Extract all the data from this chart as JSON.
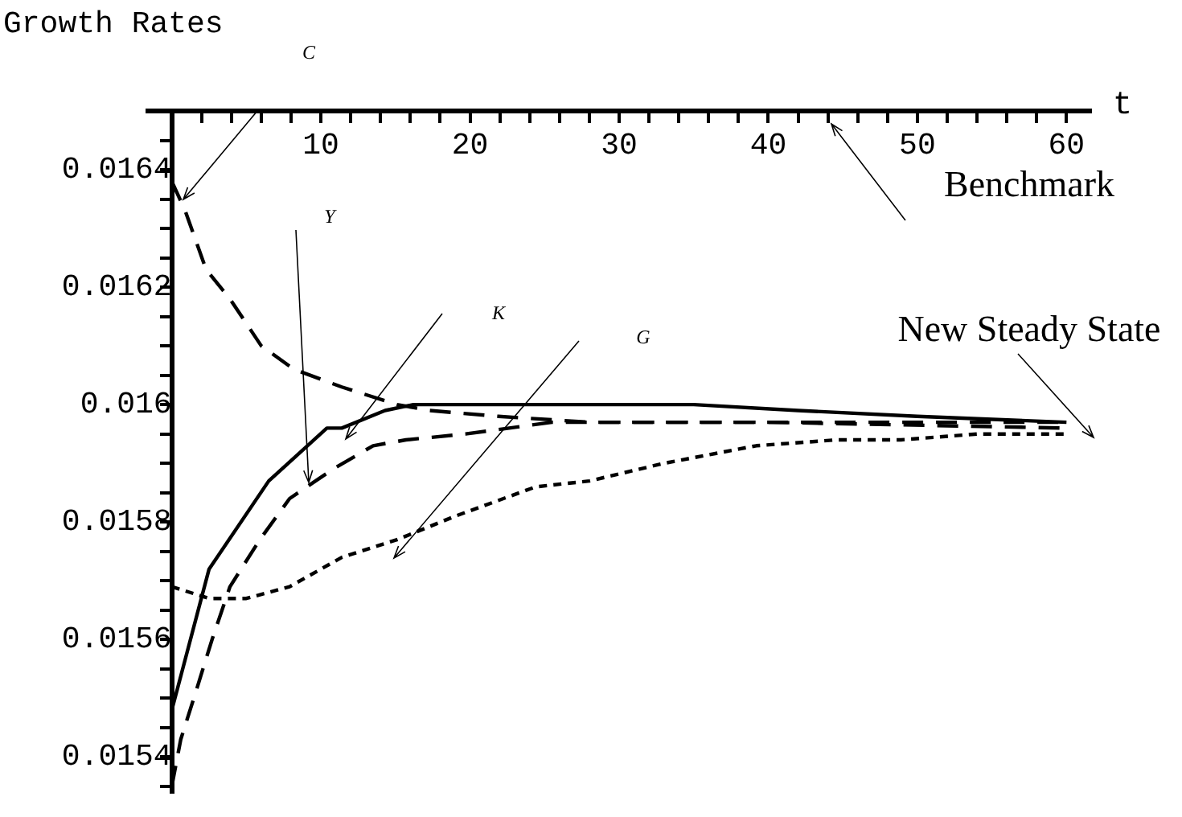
{
  "chart_data": {
    "type": "line",
    "title": "Growth Rates",
    "xlabel": "t",
    "xlim": [
      -1.6,
      61.6
    ],
    "ylim": [
      0.01534,
      0.0165
    ],
    "xticks": [
      {
        "value": 2,
        "label": null
      },
      {
        "value": 4,
        "label": null
      },
      {
        "value": 6,
        "label": null
      },
      {
        "value": 8,
        "label": null
      },
      10,
      {
        "value": 12,
        "label": null
      },
      {
        "value": 14,
        "label": null
      },
      {
        "value": 16,
        "label": null
      },
      {
        "value": 18,
        "label": null
      },
      20,
      {
        "value": 22,
        "label": null
      },
      {
        "value": 24,
        "label": null
      },
      {
        "value": 26,
        "label": null
      },
      {
        "value": 28,
        "label": null
      },
      30,
      {
        "value": 32,
        "label": null
      },
      {
        "value": 34,
        "label": null
      },
      {
        "value": 36,
        "label": null
      },
      {
        "value": 38,
        "label": null
      },
      40,
      {
        "value": 42,
        "label": null
      },
      {
        "value": 44,
        "label": null
      },
      {
        "value": 46,
        "label": null
      },
      {
        "value": 48,
        "label": null
      },
      50,
      {
        "value": 52,
        "label": null
      },
      {
        "value": 54,
        "label": null
      },
      {
        "value": 56,
        "label": null
      },
      {
        "value": 58,
        "label": null
      },
      60
    ],
    "yticks": [
      {
        "value": 0.01535,
        "label": null
      },
      0.0154,
      {
        "value": 0.01545,
        "label": null
      },
      {
        "value": 0.0155,
        "label": null
      },
      {
        "value": 0.01555,
        "label": null
      },
      0.0156,
      {
        "value": 0.01565,
        "label": null
      },
      {
        "value": 0.0157,
        "label": null
      },
      {
        "value": 0.01575,
        "label": null
      },
      0.0158,
      {
        "value": 0.01585,
        "label": null
      },
      {
        "value": 0.0159,
        "label": null
      },
      {
        "value": 0.01595,
        "label": null
      },
      0.016,
      {
        "value": 0.01605,
        "label": null
      },
      {
        "value": 0.0161,
        "label": null
      },
      {
        "value": 0.01615,
        "label": null
      },
      0.0162,
      {
        "value": 0.01625,
        "label": null
      },
      {
        "value": 0.0163,
        "label": null
      },
      {
        "value": 0.01635,
        "label": null
      },
      0.0164,
      {
        "value": 0.01645,
        "label": null
      }
    ],
    "grid": false,
    "legend": false,
    "series": [
      {
        "color": "#000000",
        "line_style": "dashed",
        "x": [
          0,
          0.9,
          2.3,
          3.9,
          6,
          8.2,
          11.4,
          15.1,
          17.3,
          21.9,
          28,
          40,
          50,
          60
        ],
        "values": [
          0.01638,
          0.01633,
          0.01623,
          0.01618,
          0.0161,
          0.01606,
          0.01603,
          0.016,
          0.01599,
          0.01598,
          0.01597,
          0.01597,
          0.01597,
          0.01597
        ]
      },
      {
        "color": "#000000",
        "line_style": "dashed",
        "x": [
          0,
          0.6,
          1.6,
          2.7,
          3.9,
          5.9,
          7.9,
          10.8,
          13.5,
          15.7,
          19.7,
          25.5,
          40,
          60
        ],
        "values": [
          0.01535,
          0.01543,
          0.01551,
          0.0156,
          0.01569,
          0.01577,
          0.01584,
          0.01589,
          0.01593,
          0.01594,
          0.01595,
          0.01597,
          0.01597,
          0.01596
        ]
      },
      {
        "color": "#000000",
        "line_style": "solid",
        "x": [
          0,
          2.5,
          6.5,
          10.4,
          11.4,
          14.3,
          16.2,
          25,
          35,
          42,
          50,
          60
        ],
        "values": [
          0.01548,
          0.01572,
          0.01587,
          0.01596,
          0.01596,
          0.01599,
          0.016,
          0.016,
          0.016,
          0.01599,
          0.01598,
          0.01597
        ]
      },
      {
        "color": "#000000",
        "line_style": "dotted",
        "x": [
          0,
          2.5,
          5,
          7.9,
          11.4,
          15.1,
          19,
          24.4,
          28,
          33,
          39.2,
          44.6,
          48.9,
          54,
          60
        ],
        "values": [
          0.01569,
          0.01567,
          0.01567,
          0.01569,
          0.01574,
          0.01577,
          0.01581,
          0.01586,
          0.01587,
          0.0159,
          0.01593,
          0.01594,
          0.01594,
          0.01595,
          0.01595
        ]
      }
    ],
    "annotations": [
      "C",
      "Y",
      "K",
      "G",
      "Benchmark",
      "New Steady State"
    ]
  }
}
